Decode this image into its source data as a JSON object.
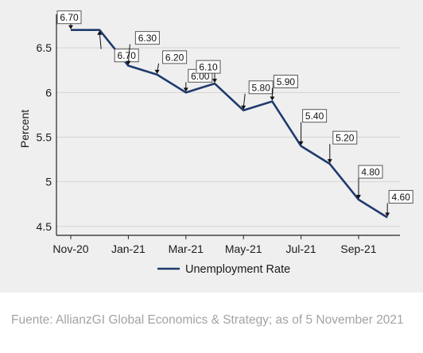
{
  "chart_data": {
    "type": "line",
    "title": "",
    "xlabel": "",
    "ylabel": "Percent",
    "ylim": [
      4.4,
      6.84
    ],
    "yticks": [
      4.5,
      5,
      5.5,
      6,
      6.5
    ],
    "ytick_labels": [
      "4.5",
      "5",
      "5.5",
      "6",
      "6.5"
    ],
    "grid": "horizontal",
    "legend_position": "bottom",
    "x": [
      "2020-11",
      "2020-12",
      "2021-01",
      "2021-02",
      "2021-03",
      "2021-04",
      "2021-05",
      "2021-06",
      "2021-07",
      "2021-08",
      "2021-09",
      "2021-10"
    ],
    "xtick_labels": [
      {
        "x": "2020-11",
        "label": "Nov-20"
      },
      {
        "x": "2021-01",
        "label": "Jan-21"
      },
      {
        "x": "2021-03",
        "label": "Mar-21"
      },
      {
        "x": "2021-05",
        "label": "May-21"
      },
      {
        "x": "2021-07",
        "label": "Jul-21"
      },
      {
        "x": "2021-09",
        "label": "Sep-21"
      }
    ],
    "series": [
      {
        "name": "Unemployment Rate",
        "color": "#1f3a6e",
        "values": [
          6.7,
          6.7,
          6.3,
          6.2,
          6.0,
          6.1,
          5.8,
          5.9,
          5.4,
          5.2,
          4.8,
          4.6
        ],
        "data_labels": [
          "6.70",
          "6.70",
          "6.30",
          "6.20",
          "6.00",
          "6.10",
          "5.80",
          "5.90",
          "5.40",
          "5.20",
          "4.80",
          "4.60"
        ]
      }
    ]
  },
  "source_note": "Fuente: AllianzGI Global Economics & Strategy; as of 5 November 2021"
}
